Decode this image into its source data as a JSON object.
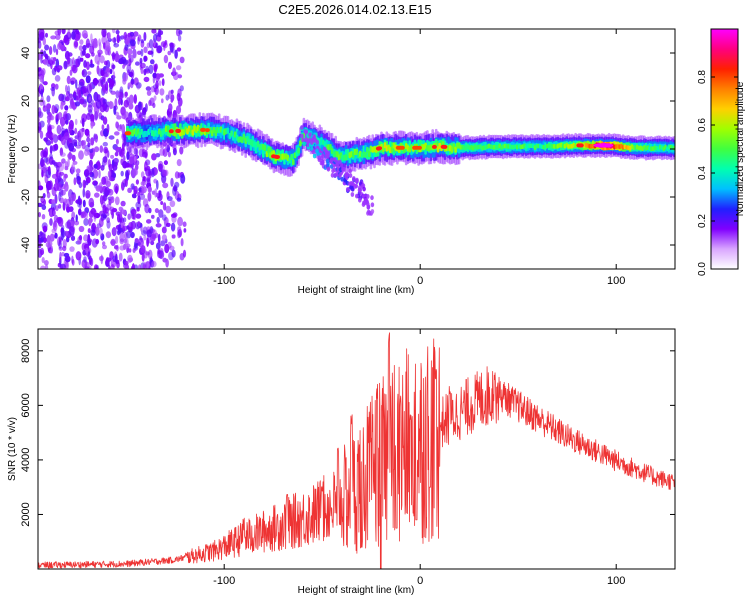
{
  "title": "C2E5.2026.014.02.13.E15",
  "chart_data": [
    {
      "type": "heatmap",
      "name": "spectrogram",
      "xlabel": "Height of straight line (km)",
      "ylabel": "Frequency (Hz)",
      "xlim": [
        -195,
        130
      ],
      "ylim": [
        -50,
        50
      ],
      "xticks": [
        -100,
        0,
        100
      ],
      "yticks": [
        -40,
        -20,
        0,
        20,
        40
      ],
      "colorbar": {
        "label": "Normalized spectral amplitude",
        "range": [
          0,
          1
        ],
        "ticks": [
          0.0,
          0.2,
          0.4,
          0.6,
          0.8
        ],
        "tick_labels": [
          "0.0",
          "0.2",
          "0.4",
          "0.6",
          "0.8"
        ],
        "colors": [
          "#ffffff",
          "#d9a6ff",
          "#8000ff",
          "#2020ff",
          "#00c0ff",
          "#00ffb0",
          "#40ff40",
          "#a0ff00",
          "#ffd000",
          "#ff8000",
          "#ff2000",
          "#ff0080",
          "#ff00ff"
        ]
      },
      "noise_region_x": [
        -195,
        -120
      ],
      "main_band": [
        {
          "x": -150,
          "y": 6.5,
          "a": 0.55
        },
        {
          "x": -140,
          "y": 7,
          "a": 0.35
        },
        {
          "x": -125,
          "y": 7.5,
          "a": 0.6
        },
        {
          "x": -110,
          "y": 8,
          "a": 0.55
        },
        {
          "x": -100,
          "y": 7,
          "a": 0.45
        },
        {
          "x": -90,
          "y": 4,
          "a": 0.45
        },
        {
          "x": -82,
          "y": 0.5,
          "a": 0.5
        },
        {
          "x": -75,
          "y": -3,
          "a": 0.6
        },
        {
          "x": -65,
          "y": -4.5,
          "a": 0.45
        },
        {
          "x": -60,
          "y": 6,
          "a": 0.5
        },
        {
          "x": -50,
          "y": 2,
          "a": 0.45
        },
        {
          "x": -42,
          "y": -3,
          "a": 0.5
        },
        {
          "x": -30,
          "y": -2,
          "a": 0.5
        },
        {
          "x": -20,
          "y": 0.5,
          "a": 0.6
        },
        {
          "x": -10,
          "y": 0.5,
          "a": 0.55
        },
        {
          "x": 0,
          "y": 0.5,
          "a": 0.55
        },
        {
          "x": 10,
          "y": 1,
          "a": 0.6
        },
        {
          "x": 20,
          "y": 0.5,
          "a": 0.5
        },
        {
          "x": 40,
          "y": 1,
          "a": 0.5
        },
        {
          "x": 60,
          "y": 1,
          "a": 0.45
        },
        {
          "x": 80,
          "y": 1.5,
          "a": 0.6
        },
        {
          "x": 95,
          "y": 1.5,
          "a": 0.95
        },
        {
          "x": 110,
          "y": 0.5,
          "a": 0.5
        },
        {
          "x": 130,
          "y": 0.5,
          "a": 0.45
        }
      ],
      "branch": [
        {
          "x": -60,
          "y": 6,
          "a": 0.4
        },
        {
          "x": -48,
          "y": -4,
          "a": 0.3
        },
        {
          "x": -38,
          "y": -12,
          "a": 0.25
        },
        {
          "x": -30,
          "y": -18,
          "a": 0.2
        },
        {
          "x": -25,
          "y": -24,
          "a": 0.12
        }
      ]
    },
    {
      "type": "line",
      "name": "snr",
      "xlabel": "Height of straight line (km)",
      "ylabel": "SNR (10 * v/v)",
      "xlim": [
        -195,
        130
      ],
      "ylim": [
        0,
        8800
      ],
      "xticks": [
        -100,
        0,
        100
      ],
      "yticks": [
        2000,
        4000,
        6000,
        8000
      ],
      "color": "#ee3333",
      "envelope": [
        {
          "x": -195,
          "y": 150
        },
        {
          "x": -150,
          "y": 200
        },
        {
          "x": -125,
          "y": 350
        },
        {
          "x": -105,
          "y": 700
        },
        {
          "x": -90,
          "y": 1200
        },
        {
          "x": -70,
          "y": 1700
        },
        {
          "x": -55,
          "y": 2100
        },
        {
          "x": -40,
          "y": 2600
        },
        {
          "x": -28,
          "y": 3600
        },
        {
          "x": -20,
          "y": 4200
        },
        {
          "x": -10,
          "y": 4700
        },
        {
          "x": 0,
          "y": 5100
        },
        {
          "x": 15,
          "y": 5600
        },
        {
          "x": 25,
          "y": 6100
        },
        {
          "x": 38,
          "y": 6600
        },
        {
          "x": 55,
          "y": 5800
        },
        {
          "x": 75,
          "y": 4900
        },
        {
          "x": 100,
          "y": 4000
        },
        {
          "x": 120,
          "y": 3400
        },
        {
          "x": 130,
          "y": 3200
        }
      ],
      "spikes": [
        {
          "x": -90,
          "y": 1900
        },
        {
          "x": -68,
          "y": 2800
        },
        {
          "x": -50,
          "y": 3100
        },
        {
          "x": -42,
          "y": 4500
        },
        {
          "x": -35,
          "y": 5700
        },
        {
          "x": -30,
          "y": 4000
        },
        {
          "x": -25,
          "y": 4800
        },
        {
          "x": -22,
          "y": 6800
        },
        {
          "x": -16,
          "y": 8800
        },
        {
          "x": -10,
          "y": 6400
        },
        {
          "x": -5,
          "y": 5700
        },
        {
          "x": 8,
          "y": 7400
        },
        {
          "x": 15,
          "y": 6800
        },
        {
          "x": 38,
          "y": 7200
        }
      ],
      "dips": [
        {
          "x": -30,
          "y": 800
        },
        {
          "x": -20,
          "y": 0
        },
        {
          "x": -12,
          "y": 1500
        },
        {
          "x": -2,
          "y": 1800
        },
        {
          "x": 5,
          "y": 3000
        }
      ]
    }
  ]
}
